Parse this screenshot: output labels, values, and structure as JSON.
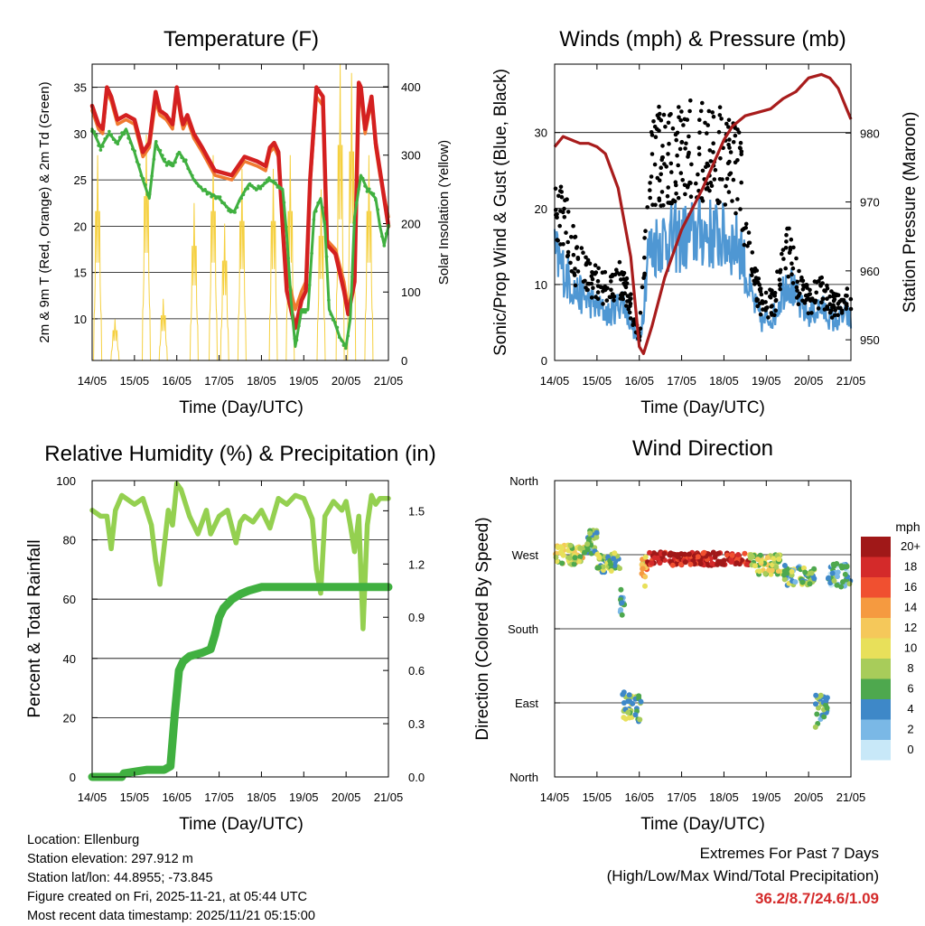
{
  "info": {
    "location": "Location: Ellenburg",
    "elevation": "Station elevation: 297.912 m",
    "latlon": "Station lat/lon: 44.8955; -73.845",
    "created": "Figure created on Fri, 2025-11-21, at 05:44 UTC",
    "recent": "Most recent data timestamp: 2025/11/21 05:15:00"
  },
  "extremes": {
    "heading": "Extremes For Past 7 Days",
    "subheading": "(High/Low/Max Wind/Total Precipitation)",
    "values": "36.2/8.7/24.6/1.09",
    "color": "#d42a2a"
  },
  "chart_data": [
    {
      "id": "temperature",
      "type": "line",
      "title": "Temperature (F)",
      "xlabel": "Time (Day/UTC)",
      "ylabel": "2m & 9m T (Red, Orange) & 2m Td (Green)",
      "y2label": "Solar Insolation (Yellow)",
      "categories": [
        "14/05",
        "15/05",
        "16/05",
        "17/05",
        "18/05",
        "19/05",
        "20/05",
        "21/05"
      ],
      "xlim": [
        0,
        7
      ],
      "ylim": [
        5.5,
        37.5
      ],
      "yticks": [
        10,
        15,
        20,
        25,
        30,
        35
      ],
      "y2lim": [
        0,
        433
      ],
      "y2ticks": [
        0,
        100,
        200,
        300,
        400
      ],
      "series": [
        {
          "name": "2m T",
          "color": "#d42020",
          "axis": "left",
          "x": [
            0,
            0.15,
            0.25,
            0.35,
            0.45,
            0.6,
            0.8,
            1.0,
            1.2,
            1.35,
            1.5,
            1.6,
            1.75,
            1.9,
            2.0,
            2.1,
            2.15,
            2.25,
            2.4,
            2.6,
            2.9,
            3.3,
            3.6,
            3.9,
            4.1,
            4.2,
            4.3,
            4.4,
            4.5,
            4.6,
            4.8,
            4.95,
            5.05,
            5.15,
            5.3,
            5.45,
            5.55,
            5.75,
            5.95,
            6.05,
            6.2,
            6.25,
            6.3,
            6.35,
            6.45,
            6.6,
            6.7,
            6.8,
            7.0
          ],
          "values": [
            33,
            31,
            30.5,
            35,
            34,
            31.5,
            32,
            31.5,
            28,
            29,
            34.5,
            32.5,
            32,
            31,
            35,
            32,
            31,
            32,
            30,
            28.5,
            26,
            25.5,
            27.5,
            27,
            26.5,
            28.5,
            29,
            28,
            20,
            13,
            9,
            12,
            13,
            25,
            35,
            34,
            18,
            17,
            13,
            10.5,
            14,
            25,
            35.5,
            35,
            30.5,
            34,
            29,
            26,
            20
          ]
        },
        {
          "name": "9m T",
          "color": "#f07a30",
          "axis": "left",
          "x": [
            0,
            0.15,
            0.25,
            0.35,
            0.45,
            0.6,
            0.8,
            1.0,
            1.2,
            1.35,
            1.5,
            1.6,
            1.75,
            1.9,
            2.0,
            2.1,
            2.15,
            2.25,
            2.4,
            2.6,
            2.9,
            3.3,
            3.6,
            3.9,
            4.1,
            4.2,
            4.3,
            4.4,
            4.5,
            4.6,
            4.8,
            4.95,
            5.05,
            5.15,
            5.3,
            5.45,
            5.55,
            5.75,
            5.95,
            6.05,
            6.2,
            6.25,
            6.3,
            6.35,
            6.45,
            6.6,
            6.7,
            6.8,
            7.0
          ],
          "values": [
            32.5,
            30.5,
            30,
            34.5,
            33.5,
            31,
            31.5,
            31,
            27.5,
            28.5,
            33.5,
            32,
            31.5,
            30.5,
            34.5,
            31.5,
            30.5,
            31.5,
            29.5,
            28,
            25.5,
            25,
            27,
            26.5,
            26,
            28,
            28.5,
            27.5,
            20,
            15,
            11,
            13,
            14,
            24.5,
            34,
            33,
            18.5,
            17.5,
            14,
            11,
            14.5,
            24.5,
            34.5,
            34,
            30,
            33.5,
            28.5,
            25.5,
            21
          ]
        },
        {
          "name": "2m Td",
          "color": "#40b040",
          "axis": "left",
          "x": [
            0,
            0.2,
            0.4,
            0.6,
            0.8,
            1.0,
            1.2,
            1.35,
            1.5,
            1.7,
            1.9,
            2.05,
            2.2,
            2.4,
            2.6,
            2.8,
            3.0,
            3.2,
            3.35,
            3.5,
            3.7,
            3.9,
            4.2,
            4.5,
            4.6,
            4.7,
            4.8,
            4.95,
            5.1,
            5.25,
            5.4,
            5.5,
            5.6,
            5.7,
            5.85,
            6.0,
            6.1,
            6.2,
            6.35,
            6.5,
            6.7,
            6.8,
            6.9,
            7.0
          ],
          "values": [
            30.5,
            28.5,
            30,
            29,
            30.5,
            28,
            25,
            23,
            29,
            27,
            26.5,
            28,
            27,
            25,
            24,
            23.5,
            23,
            22,
            21.5,
            23,
            24.5,
            24,
            25,
            24,
            19,
            12,
            7,
            11,
            11,
            21.5,
            23,
            20,
            11,
            10,
            8,
            7,
            10,
            21,
            25.5,
            24,
            23,
            20,
            18,
            20
          ]
        }
      ],
      "solar": {
        "name": "Solar Insolation",
        "color": "#f5d040",
        "axis": "right",
        "days": [
          0,
          1,
          2,
          3,
          4,
          5,
          6
        ],
        "peaks": [
          300,
          60,
          330,
          90,
          230,
          300,
          280,
          200,
          300,
          280,
          433,
          250,
          420
        ]
      }
    },
    {
      "id": "winds",
      "type": "scatter",
      "title": "Winds (mph) & Pressure (mb)",
      "xlabel": "Time (Day/UTC)",
      "ylabel": "Sonic/Prop Wind & Gust (Blue, Black)",
      "y2label": "Station Pressure (Maroon)",
      "categories": [
        "14/05",
        "15/05",
        "16/05",
        "17/05",
        "18/05",
        "19/05",
        "20/05",
        "21/05"
      ],
      "xlim": [
        0,
        7
      ],
      "ylim": [
        0,
        39
      ],
      "yticks": [
        0,
        10,
        20,
        30
      ],
      "y2lim": [
        947,
        990
      ],
      "y2ticks": [
        950,
        960,
        970,
        980
      ],
      "wind_envelope": {
        "x": [
          0,
          0.3,
          0.5,
          0.8,
          1.0,
          1.3,
          1.6,
          2.0,
          2.1,
          2.2,
          2.5,
          3.0,
          3.5,
          4.0,
          4.4,
          4.6,
          4.9,
          5.2,
          5.5,
          5.8,
          6.0,
          6.3,
          6.6,
          6.9,
          7.0
        ],
        "sustained": [
          14,
          11,
          9,
          8,
          7,
          6,
          8,
          2,
          7,
          14,
          16,
          16,
          17,
          16,
          15,
          9,
          5,
          6,
          11,
          7,
          6,
          7,
          5,
          6,
          5
        ],
        "gust": [
          20,
          17,
          13,
          11,
          10,
          9,
          11,
          3,
          11,
          25,
          27,
          28,
          28,
          27,
          24,
          13,
          7,
          8,
          15,
          9,
          8,
          9,
          7,
          8,
          7
        ]
      },
      "series": [
        {
          "name": "Station Pressure",
          "color": "#a81c1c",
          "axis": "right",
          "x": [
            0,
            0.2,
            0.4,
            0.6,
            0.8,
            1.0,
            1.2,
            1.5,
            1.8,
            2.0,
            2.1,
            2.3,
            2.6,
            3.0,
            3.5,
            4.0,
            4.2,
            4.5,
            4.8,
            5.1,
            5.4,
            5.7,
            6.0,
            6.3,
            6.5,
            6.7,
            6.9,
            7.0
          ],
          "values": [
            978,
            979.5,
            979,
            978.5,
            978.5,
            978,
            977,
            972,
            962,
            949,
            948,
            952,
            959,
            966,
            972,
            979,
            981,
            982.5,
            983,
            983.5,
            985,
            986,
            988,
            988.5,
            988,
            986.5,
            983.5,
            982
          ]
        }
      ]
    },
    {
      "id": "humidity",
      "type": "line",
      "title": "Relative Humidity (%) & Precipitation (in)",
      "xlabel": "Time (Day/UTC)",
      "ylabel": "Percent & Total Rainfall",
      "categories": [
        "14/05",
        "15/05",
        "16/05",
        "17/05",
        "18/05",
        "19/05",
        "20/05",
        "21/05"
      ],
      "xlim": [
        0,
        7
      ],
      "ylim": [
        0,
        100
      ],
      "yticks": [
        0,
        20,
        40,
        60,
        80,
        100
      ],
      "y2lim": [
        0,
        1.67
      ],
      "y2ticks": [
        "0.0",
        "0.3",
        "0.6",
        "0.9",
        "1.2",
        "1.5"
      ],
      "series": [
        {
          "name": "Relative Humidity",
          "color": "#94d050",
          "axis": "left",
          "x": [
            0,
            0.2,
            0.35,
            0.45,
            0.55,
            0.7,
            0.9,
            1.0,
            1.2,
            1.4,
            1.5,
            1.6,
            1.8,
            1.9,
            2.0,
            2.1,
            2.3,
            2.5,
            2.7,
            2.8,
            3.0,
            3.2,
            3.4,
            3.5,
            3.6,
            3.8,
            4.0,
            4.2,
            4.4,
            4.6,
            4.8,
            5.0,
            5.2,
            5.3,
            5.4,
            5.5,
            5.7,
            5.9,
            6.0,
            6.1,
            6.2,
            6.3,
            6.4,
            6.5,
            6.6,
            6.7,
            6.8,
            7.0
          ],
          "values": [
            90,
            88,
            88,
            77,
            90,
            95,
            93,
            92,
            94,
            85,
            73,
            65,
            90,
            85,
            99,
            97,
            88,
            82,
            90,
            82,
            88,
            90,
            79,
            86,
            88,
            86,
            90,
            84,
            94,
            92,
            95,
            94,
            87,
            70,
            62,
            88,
            93,
            90,
            93,
            85,
            76,
            88,
            50,
            85,
            95,
            92,
            94,
            94
          ]
        },
        {
          "name": "Total Rainfall",
          "color": "#40b040",
          "axis": "right",
          "x": [
            0,
            0.7,
            0.75,
            1.3,
            1.7,
            1.85,
            1.95,
            2.05,
            2.15,
            2.3,
            2.6,
            2.8,
            2.9,
            3.0,
            3.1,
            3.3,
            3.5,
            3.7,
            4.0,
            4.3,
            5.0,
            6.0,
            7.0
          ],
          "values": [
            0,
            0,
            0.02,
            0.04,
            0.04,
            0.06,
            0.35,
            0.6,
            0.65,
            0.68,
            0.7,
            0.72,
            0.8,
            0.9,
            0.95,
            1.0,
            1.03,
            1.05,
            1.07,
            1.07,
            1.07,
            1.07,
            1.07
          ]
        }
      ]
    },
    {
      "id": "direction",
      "type": "scatter",
      "title": "Wind Direction",
      "xlabel": "Time (Day/UTC)",
      "ylabel": "Direction (Colored By Speed)",
      "categories": [
        "14/05",
        "15/05",
        "16/05",
        "17/05",
        "18/05",
        "19/05",
        "20/05",
        "21/05"
      ],
      "xlim": [
        0,
        7
      ],
      "ylim": [
        0,
        360
      ],
      "ylabels": [
        "North",
        "East",
        "South",
        "West",
        "North"
      ],
      "yticks": [
        0,
        90,
        180,
        270,
        360
      ],
      "legend": {
        "title": "mph",
        "labels": [
          "20+",
          "18",
          "16",
          "14",
          "12",
          "10",
          "8",
          "6",
          "4",
          "2",
          "0"
        ],
        "colors": [
          "#a01818",
          "#d42a2a",
          "#f05030",
          "#f59a40",
          "#f5c85a",
          "#e8e05a",
          "#a8cc5a",
          "#4ea84e",
          "#3e88c8",
          "#7ab8e6",
          "#c8e8f8"
        ]
      },
      "clusters": [
        {
          "x0": 0.0,
          "x1": 0.7,
          "dir": 270,
          "spread": 12,
          "speed": 10
        },
        {
          "x0": 0.7,
          "x1": 1.0,
          "dir": 285,
          "spread": 15,
          "speed": 6
        },
        {
          "x0": 1.0,
          "x1": 1.55,
          "dir": 260,
          "spread": 12,
          "speed": 7
        },
        {
          "x0": 1.55,
          "x1": 1.65,
          "dir": 210,
          "spread": 18,
          "speed": 5
        },
        {
          "x0": 1.6,
          "x1": 2.05,
          "dir": 85,
          "spread": 18,
          "speed": 7
        },
        {
          "x0": 2.05,
          "x1": 2.2,
          "dir": 250,
          "spread": 20,
          "speed": 12
        },
        {
          "x0": 2.2,
          "x1": 4.6,
          "dir": 265,
          "spread": 8,
          "speed": 19
        },
        {
          "x0": 4.6,
          "x1": 5.4,
          "dir": 258,
          "spread": 12,
          "speed": 9
        },
        {
          "x0": 5.4,
          "x1": 6.15,
          "dir": 245,
          "spread": 12,
          "speed": 6
        },
        {
          "x0": 6.15,
          "x1": 6.45,
          "dir": 80,
          "spread": 20,
          "speed": 5
        },
        {
          "x0": 6.45,
          "x1": 7.0,
          "dir": 245,
          "spread": 14,
          "speed": 4
        }
      ]
    }
  ]
}
